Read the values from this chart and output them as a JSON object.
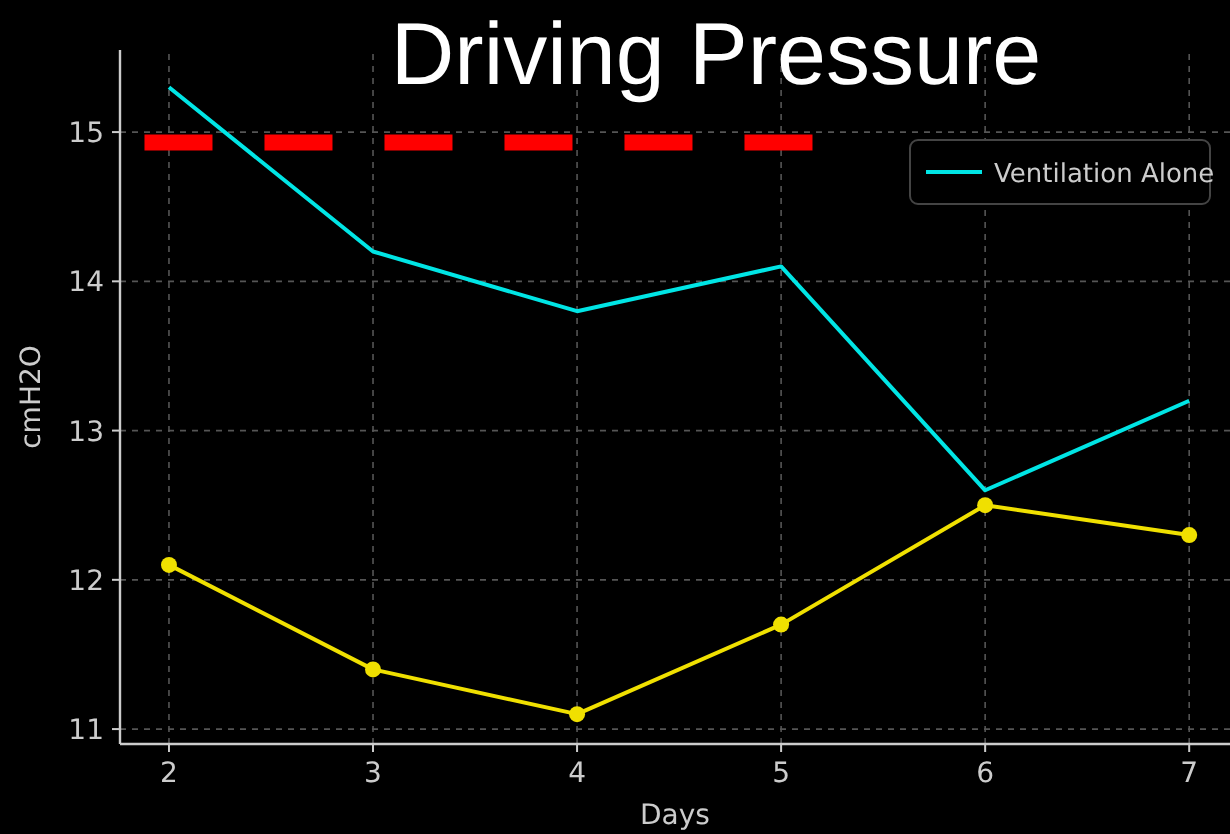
{
  "chart_data": {
    "type": "line",
    "title": "Driving Pressure",
    "xlabel": "Days",
    "ylabel": "cmH2O",
    "x": [
      2,
      3,
      4,
      5,
      6,
      7
    ],
    "series": [
      {
        "name": "Ventilation Alone",
        "color": "#00e5e5",
        "values": [
          15.3,
          14.2,
          13.8,
          14.1,
          12.6,
          13.2
        ],
        "marker": "none"
      },
      {
        "color": "#f0e000",
        "values": [
          12.1,
          11.4,
          11.1,
          11.7,
          12.5,
          12.3
        ],
        "marker": "circle"
      },
      {
        "color": "#ff0000",
        "x": [
          1.88,
          5.18
        ],
        "values": [
          14.93,
          14.93
        ],
        "marker": "none",
        "line_style": "dashed"
      }
    ],
    "xlim": [
      1.76,
      7.2
    ],
    "xticks": [
      2,
      3,
      4,
      5,
      6,
      7
    ],
    "ylim": [
      10.9,
      15.55
    ],
    "yticks": [
      11,
      12,
      13,
      14,
      15
    ],
    "grid": true,
    "legend": "top right",
    "line_style": "solid"
  }
}
